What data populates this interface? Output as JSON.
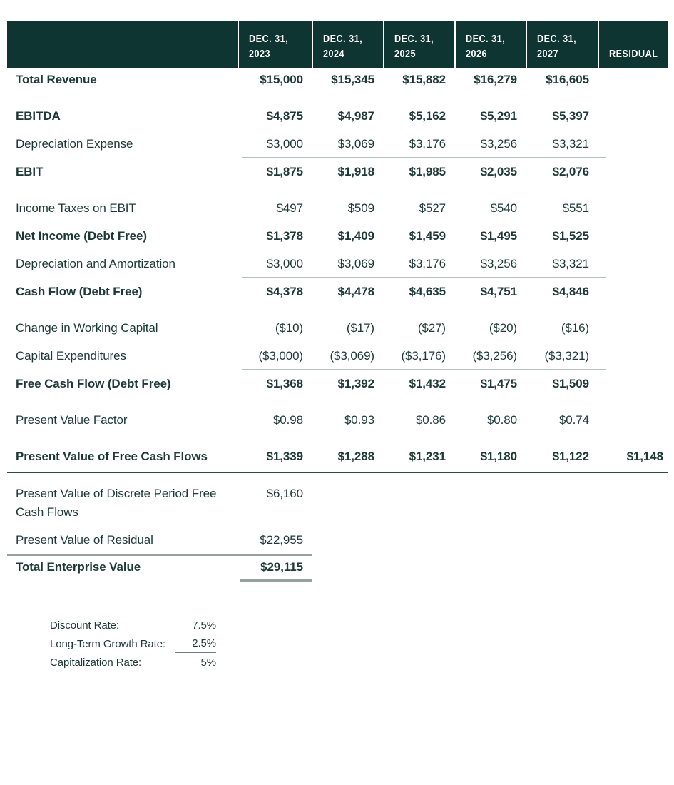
{
  "colors": {
    "header_bg": "#0e3531",
    "header_text": "#ffffff",
    "text": "#1c3933",
    "rule_light": "#b7bfbc",
    "rule_dark": "#31463f",
    "rule_gray": "#96a29e",
    "underline": "#6f807b"
  },
  "table": {
    "header": {
      "columns": [
        {
          "line1": "DEC. 31,",
          "line2": "2023"
        },
        {
          "line1": "DEC. 31,",
          "line2": "2024"
        },
        {
          "line1": "DEC. 31,",
          "line2": "2025"
        },
        {
          "line1": "DEC. 31,",
          "line2": "2026"
        },
        {
          "line1": "DEC. 31,",
          "line2": "2027"
        }
      ],
      "residual_label": "RESIDUAL"
    },
    "rows": [
      {
        "label": "Total Revenue",
        "bold": true,
        "gap": "first",
        "values": [
          "$15,000",
          "$15,345",
          "$15,882",
          "$16,279",
          "$16,605"
        ]
      },
      {
        "label": "EBITDA",
        "bold": true,
        "gap": "section",
        "values": [
          "$4,875",
          "$4,987",
          "$5,162",
          "$5,291",
          "$5,397"
        ]
      },
      {
        "label": "Depreciation Expense",
        "values": [
          "$3,000",
          "$3,069",
          "$3,176",
          "$3,256",
          "$3,321"
        ]
      },
      {
        "label": "EBIT",
        "bold": true,
        "rule_above": true,
        "values": [
          "$1,875",
          "$1,918",
          "$1,985",
          "$2,035",
          "$2,076"
        ]
      },
      {
        "label": "Income Taxes on EBIT",
        "gap": "section",
        "values": [
          "$497",
          "$509",
          "$527",
          "$540",
          "$551"
        ]
      },
      {
        "label": "Net Income (Debt Free)",
        "bold": true,
        "values": [
          "$1,378",
          "$1,409",
          "$1,459",
          "$1,495",
          "$1,525"
        ]
      },
      {
        "label": "Depreciation and Amortization",
        "values": [
          "$3,000",
          "$3,069",
          "$3,176",
          "$3,256",
          "$3,321"
        ]
      },
      {
        "label": "Cash Flow (Debt Free)",
        "bold": true,
        "rule_above": true,
        "values": [
          "$4,378",
          "$4,478",
          "$4,635",
          "$4,751",
          "$4,846"
        ]
      },
      {
        "label": "Change in Working Capital",
        "gap": "section",
        "values": [
          "($10)",
          "($17)",
          "($27)",
          "($20)",
          "($16)"
        ]
      },
      {
        "label": "Capital Expenditures",
        "values": [
          "($3,000)",
          "($3,069)",
          "($3,176)",
          "($3,256)",
          "($3,321)"
        ]
      },
      {
        "label": "Free Cash Flow (Debt Free)",
        "bold": true,
        "rule_above": true,
        "values": [
          "$1,368",
          "$1,392",
          "$1,432",
          "$1,475",
          "$1,509"
        ]
      },
      {
        "label": "Present Value Factor",
        "gap": "section",
        "values": [
          "$0.98",
          "$0.93",
          "$0.86",
          "$0.80",
          "$0.74"
        ]
      },
      {
        "label": "Present Value of Free Cash Flows",
        "bold": true,
        "gap": "section",
        "values": [
          "$1,339",
          "$1,288",
          "$1,231",
          "$1,180",
          "$1,122"
        ],
        "residual": "$1,148"
      }
    ]
  },
  "summary": {
    "rows": [
      {
        "label": "Present Value of Discrete Period Free Cash Flows",
        "value": "$6,160",
        "gap": "first"
      },
      {
        "label": "Present Value of Residual",
        "value": "$22,955"
      }
    ],
    "total": {
      "label": "Total Enterprise Value",
      "value": "$29,115"
    }
  },
  "assumptions": {
    "rows": [
      {
        "label": "Discount Rate:",
        "value": "7.5%"
      },
      {
        "label": "Long-Term Growth Rate:",
        "value": "2.5%",
        "underline": true
      },
      {
        "label": "Capitalization Rate:",
        "value": "5%"
      }
    ]
  }
}
